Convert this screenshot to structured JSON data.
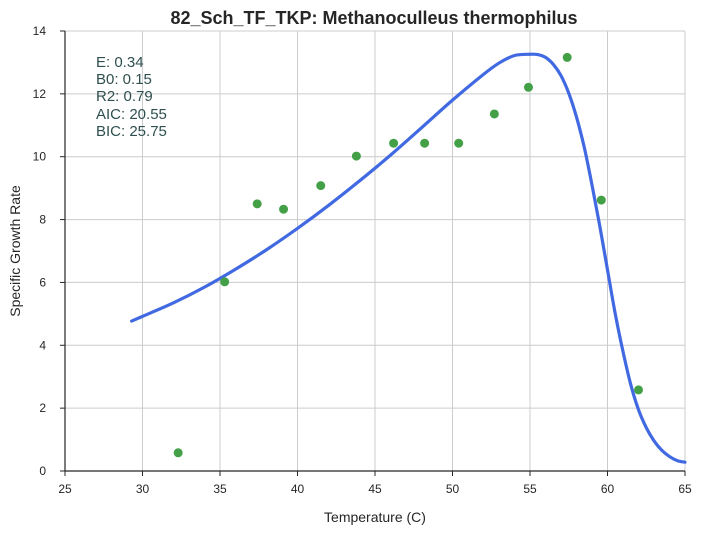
{
  "chart_data": {
    "type": "scatter",
    "title": "82_Sch_TF_TKP: Methanoculleus thermophilus",
    "xlabel": "Temperature (C)",
    "ylabel": "Specific Growth Rate",
    "xlim": [
      25,
      65
    ],
    "ylim": [
      0,
      14
    ],
    "x_ticks": [
      "25",
      "30",
      "35",
      "40",
      "45",
      "50",
      "55",
      "60",
      "65"
    ],
    "y_ticks": [
      "0",
      "2",
      "4",
      "6",
      "8",
      "10",
      "12",
      "14"
    ],
    "grid": true,
    "points": {
      "color": "#43a047",
      "x": [
        32.3,
        35.3,
        37.4,
        39.1,
        41.5,
        43.8,
        46.2,
        48.2,
        50.4,
        52.7,
        54.9,
        57.4,
        59.6,
        62.0
      ],
      "y": [
        0.58,
        6.02,
        8.5,
        8.33,
        9.08,
        10.02,
        10.43,
        10.43,
        10.43,
        11.36,
        12.21,
        13.16,
        8.62,
        2.58
      ]
    },
    "fit_curve": {
      "color": "#4169e1",
      "x": [
        29.3,
        30,
        32,
        34,
        36,
        38,
        40,
        42,
        44,
        46,
        48,
        50,
        52,
        53,
        54,
        55,
        55.5,
        56,
        56.5,
        57,
        57.5,
        58,
        58.5,
        59,
        59.5,
        60,
        60.5,
        61,
        61.5,
        62,
        62.5,
        63,
        63.5,
        64,
        64.5,
        65
      ],
      "y": [
        4.77,
        4.92,
        5.35,
        5.85,
        6.42,
        7.04,
        7.72,
        8.45,
        9.23,
        10.05,
        10.92,
        11.8,
        12.62,
        12.98,
        13.22,
        13.26,
        13.25,
        13.16,
        12.94,
        12.58,
        12.02,
        11.26,
        10.3,
        9.1,
        7.8,
        6.4,
        5.0,
        3.8,
        2.75,
        1.95,
        1.38,
        0.96,
        0.66,
        0.46,
        0.33,
        0.28
      ]
    },
    "annotations": [
      "E:  0.34",
      "B0:  0.15",
      "R2:  0.79",
      "AIC: 20.55",
      "BIC: 25.75"
    ]
  }
}
